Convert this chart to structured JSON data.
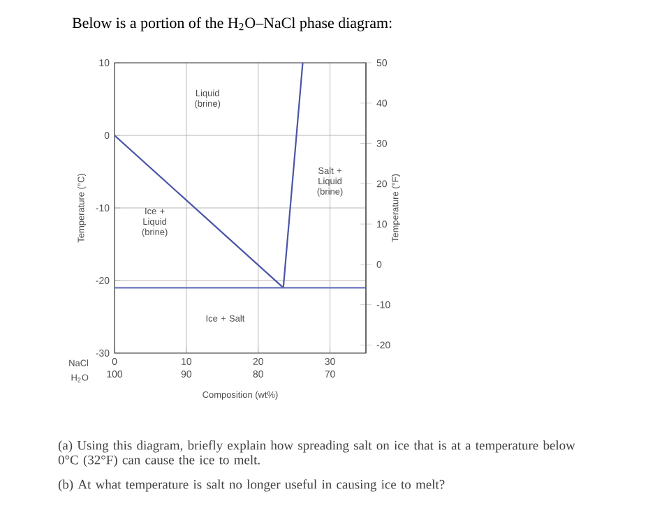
{
  "chart_data": {
    "type": "line",
    "title": "Below is a portion of the H$_{2}$O–NaCl phase diagram:",
    "xlabel": "Composition (wt%)",
    "ylabel": "Temperature (°C)",
    "y2label": "Temperature (°F)",
    "xlim": [
      0,
      35
    ],
    "xticks": [
      0,
      10,
      20,
      30
    ],
    "x2lim": [
      100,
      65
    ],
    "x2ticks": [
      100,
      90,
      80,
      70
    ],
    "ylim": [
      -30,
      10
    ],
    "yticks": [
      -30,
      -20,
      -10,
      0,
      10
    ],
    "y2lim": [
      -22,
      50
    ],
    "y2ticks": [
      -20,
      -10,
      0,
      10,
      20,
      30,
      40,
      50
    ],
    "grid": true,
    "series": [
      {
        "color": "#4a55a8",
        "x": [
          0,
          23.5
        ],
        "values": [
          0,
          -21
        ]
      },
      {
        "color": "#4a55a8",
        "x": [
          23.5,
          26.2
        ],
        "values": [
          -21,
          10
        ]
      },
      {
        "color": "#6a75c0",
        "x": [
          0,
          35
        ],
        "values": [
          -21,
          -21
        ]
      }
    ],
    "annotations": [
      "NaCl",
      "H$_{2}$O",
      "(a) Using this diagram, briefly explain how spreading salt on ice that is at a temperature below 0°C (32°F) can cause the ice to melt.",
      "(b) At what temperature is salt no longer useful in causing ice to melt?",
      "Liquid (brine)",
      "Ice + Liquid (brine)",
      "Salt + Liquid (brine)",
      "Ice + Salt"
    ]
  }
}
